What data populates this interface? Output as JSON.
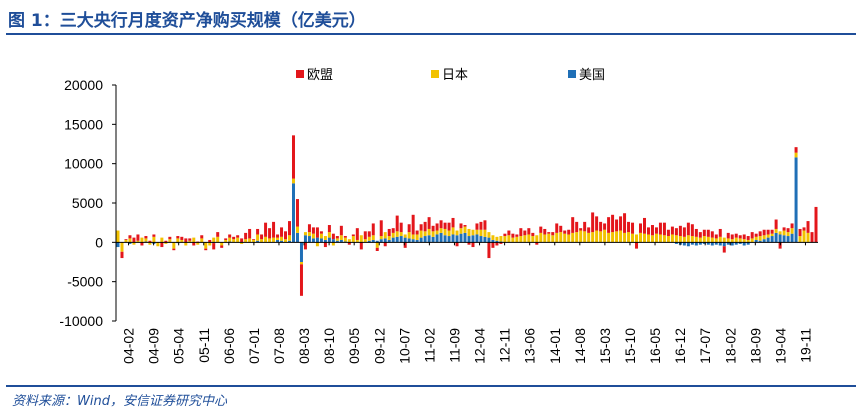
{
  "header": {
    "title": "图 1：三大央行月度资产净购买规模（亿美元）"
  },
  "footer": {
    "source": "资料来源：Wind，安信证券研究中心"
  },
  "chart_data": {
    "type": "bar",
    "stacked": true,
    "ylim": [
      -10000,
      20000
    ],
    "yticks": [
      -10000,
      -5000,
      0,
      5000,
      10000,
      15000,
      20000
    ],
    "xtick_labels": [
      "04-02",
      "04-09",
      "05-04",
      "05-11",
      "06-06",
      "07-01",
      "07-08",
      "08-03",
      "08-10",
      "09-05",
      "09-12",
      "10-07",
      "11-02",
      "11-09",
      "12-04",
      "12-11",
      "13-06",
      "14-01",
      "14-08",
      "15-03",
      "15-10",
      "16-05",
      "16-12",
      "17-07",
      "18-02",
      "18-09",
      "19-04",
      "19-11"
    ],
    "legend_position": "top",
    "series": [
      {
        "name": "欧盟",
        "color": "#e3161b",
        "values": [
          0,
          -800,
          100,
          400,
          600,
          800,
          -400,
          300,
          200,
          300,
          0,
          -600,
          200,
          300,
          -200,
          300,
          400,
          500,
          300,
          -400,
          100,
          400,
          -200,
          300,
          -800,
          600,
          -300,
          200,
          400,
          300,
          300,
          500,
          800,
          1200,
          100,
          700,
          600,
          1800,
          1300,
          2000,
          400,
          1200,
          1000,
          1800,
          5500,
          3500,
          -4000,
          -900,
          1000,
          800,
          1300,
          300,
          -600,
          900,
          700,
          300,
          1200,
          200,
          -300,
          200,
          1500,
          -900,
          1000,
          700,
          1500,
          -400,
          2000,
          -500,
          900,
          600,
          2000,
          1200,
          -700,
          1000,
          2500,
          500,
          800,
          1200,
          1500,
          700,
          900,
          1000,
          800,
          1000,
          1200,
          -500,
          600,
          200,
          -300,
          -600,
          800,
          1000,
          1200,
          -2000,
          -700,
          -400,
          -200,
          300,
          600,
          500,
          300,
          1000,
          600,
          800,
          400,
          -300,
          800,
          700,
          200,
          400,
          1200,
          800,
          400,
          600,
          2000,
          1300,
          300,
          1200,
          700,
          2500,
          1800,
          1200,
          800,
          2000,
          2200,
          1500,
          1800,
          2500,
          1300,
          1400,
          -800,
          1200,
          2000,
          900,
          1300,
          800,
          1500,
          1600,
          800,
          1000,
          900,
          1300,
          1200,
          1600,
          1500,
          1000,
          700,
          800,
          900,
          800,
          500,
          1000,
          -800,
          700,
          600,
          500,
          400,
          600,
          500,
          800,
          400,
          600,
          700,
          600,
          500,
          1200,
          -800,
          400,
          500,
          600,
          700,
          900,
          400,
          1500,
          1300,
          4500
        ]
      },
      {
        "name": "日本",
        "color": "#f2c200",
        "values": [
          1500,
          -1200,
          300,
          500,
          -300,
          200,
          600,
          400,
          -300,
          700,
          -500,
          600,
          -200,
          400,
          -800,
          500,
          300,
          -400,
          200,
          600,
          -300,
          500,
          -800,
          -400,
          600,
          700,
          -400,
          300,
          500,
          400,
          600,
          -200,
          400,
          500,
          300,
          800,
          400,
          700,
          500,
          600,
          300,
          500,
          400,
          700,
          600,
          800,
          -300,
          400,
          500,
          600,
          -500,
          600,
          500,
          700,
          -400,
          300,
          600,
          500,
          400,
          800,
          300,
          900,
          400,
          500,
          600,
          -700,
          400,
          800,
          500,
          600,
          700,
          500,
          400,
          800,
          600,
          700,
          900,
          600,
          800,
          700,
          500,
          600,
          800,
          700,
          900,
          600,
          700,
          800,
          900,
          700,
          600,
          800,
          900,
          700,
          600,
          500,
          700,
          800,
          900,
          600,
          700,
          800,
          900,
          1000,
          800,
          900,
          1200,
          1000,
          1100,
          900,
          1200,
          1300,
          1100,
          1000,
          1200,
          1300,
          1500,
          1400,
          1200,
          1300,
          1500,
          1400,
          1600,
          1200,
          1300,
          1400,
          1500,
          1200,
          1300,
          1100,
          1000,
          1200,
          1100,
          1000,
          900,
          1100,
          1000,
          900,
          800,
          1000,
          900,
          800,
          700,
          900,
          800,
          700,
          600,
          800,
          700,
          600,
          500,
          700,
          600,
          500,
          400,
          600,
          500,
          400,
          300,
          500,
          400,
          600,
          500,
          400,
          300,
          500,
          400,
          600,
          500,
          700,
          600,
          800,
          1500,
          1200
        ]
      },
      {
        "name": "美国",
        "color": "#1f6fb6",
        "values": [
          -600,
          0,
          0,
          -200,
          0,
          0,
          0,
          100,
          0,
          -200,
          0,
          0,
          0,
          0,
          0,
          -100,
          0,
          0,
          0,
          0,
          0,
          0,
          0,
          0,
          -100,
          0,
          0,
          0,
          100,
          0,
          0,
          0,
          0,
          0,
          0,
          200,
          0,
          0,
          0,
          0,
          300,
          200,
          0,
          200,
          7500,
          1200,
          -2500,
          900,
          800,
          500,
          600,
          500,
          300,
          600,
          400,
          200,
          300,
          100,
          0,
          0,
          0,
          0,
          0,
          200,
          300,
          200,
          400,
          500,
          300,
          600,
          700,
          800,
          600,
          500,
          400,
          300,
          600,
          800,
          900,
          700,
          1000,
          1200,
          900,
          800,
          1000,
          900,
          1100,
          1200,
          800,
          900,
          1000,
          800,
          700,
          600,
          300,
          200,
          100,
          0,
          0,
          0,
          0,
          0,
          0,
          0,
          0,
          0,
          0,
          0,
          0,
          0,
          0,
          0,
          0,
          0,
          0,
          0,
          0,
          0,
          0,
          0,
          0,
          0,
          0,
          0,
          0,
          0,
          0,
          0,
          0,
          0,
          0,
          0,
          0,
          0,
          0,
          0,
          0,
          0,
          0,
          0,
          -200,
          -300,
          -400,
          -500,
          -300,
          -400,
          -300,
          -200,
          -300,
          -400,
          -300,
          -400,
          -500,
          -300,
          -400,
          -300,
          -200,
          -400,
          -300,
          0,
          300,
          200,
          400,
          600,
          800,
          1200,
          1000,
          900,
          800,
          1100,
          10800
        ]
      }
    ]
  }
}
